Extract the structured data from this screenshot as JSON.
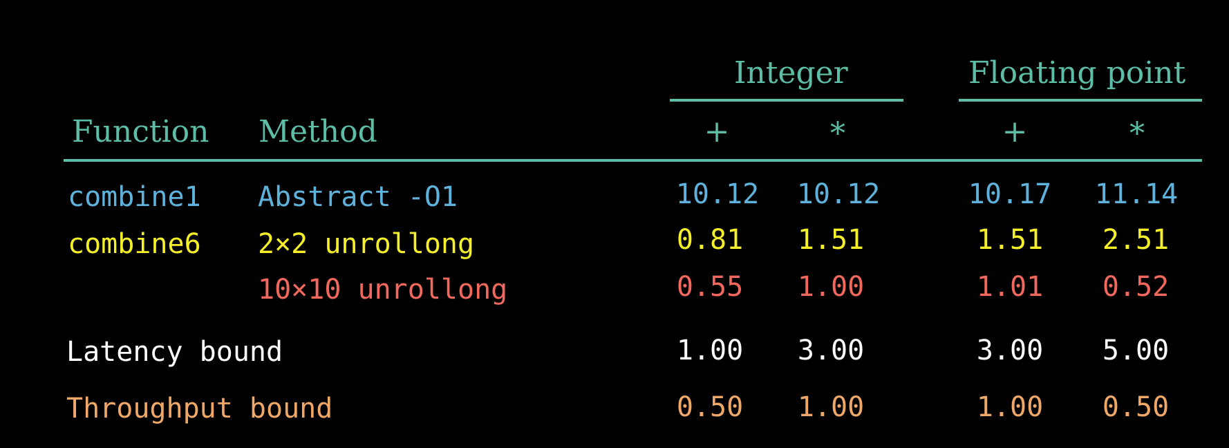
{
  "colors": {
    "header": "#5dbda7",
    "row_combine1": "#5fb2db",
    "row_combine6": "#f5f02a",
    "row_10x10": "#f2685c",
    "row_latency": "#ffffff",
    "row_throughput": "#f0a868",
    "background": "#000000"
  },
  "header": {
    "group_integer": "Integer",
    "group_float": "Floating point",
    "col_function": "Function",
    "col_method": "Method",
    "int_add": "+",
    "int_mul": "*",
    "fp_add": "+",
    "fp_mul": "*"
  },
  "rows": [
    {
      "function": "combine1",
      "method": "Abstract -O1",
      "int_add": "10.12",
      "int_mul": "10.12",
      "fp_add": "10.17",
      "fp_mul": "11.14"
    },
    {
      "function": "combine6",
      "method": "2×2 unrollong",
      "int_add": "0.81",
      "int_mul": "1.51",
      "fp_add": "1.51",
      "fp_mul": "2.51"
    },
    {
      "function": "",
      "method": "10×10 unrollong",
      "int_add": "0.55",
      "int_mul": "1.00",
      "fp_add": "1.01",
      "fp_mul": "0.52"
    },
    {
      "function": "Latency bound",
      "method": "",
      "int_add": "1.00",
      "int_mul": "3.00",
      "fp_add": "3.00",
      "fp_mul": "5.00"
    },
    {
      "function": "Throughput bound",
      "method": "",
      "int_add": "0.50",
      "int_mul": "1.00",
      "fp_add": "1.00",
      "fp_mul": "0.50"
    }
  ]
}
